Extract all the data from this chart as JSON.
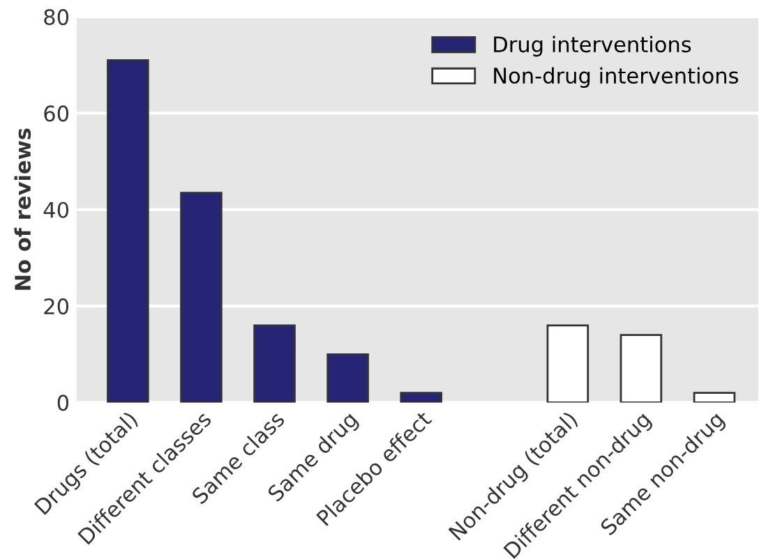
{
  "chart_data": {
    "type": "bar",
    "ylabel": "No of reviews",
    "categories": [
      "Drugs (total)",
      "Different classes",
      "Same class",
      "Same drug",
      "Placebo effect",
      null,
      "Non-drug (total)",
      "Different non-drug",
      "Same non-drug"
    ],
    "series": [
      {
        "name": "Drug interventions",
        "color": "#262474",
        "values": [
          71,
          43.5,
          16,
          10,
          2,
          null,
          null,
          null,
          null
        ]
      },
      {
        "name": "Non-drug interventions",
        "color": "#ffffff",
        "values": [
          null,
          null,
          null,
          null,
          null,
          null,
          16,
          14,
          2
        ]
      }
    ],
    "ylim": [
      0,
      80
    ],
    "yticks": [
      0,
      20,
      40,
      60,
      80
    ],
    "grid": "y",
    "legend": "top right"
  }
}
